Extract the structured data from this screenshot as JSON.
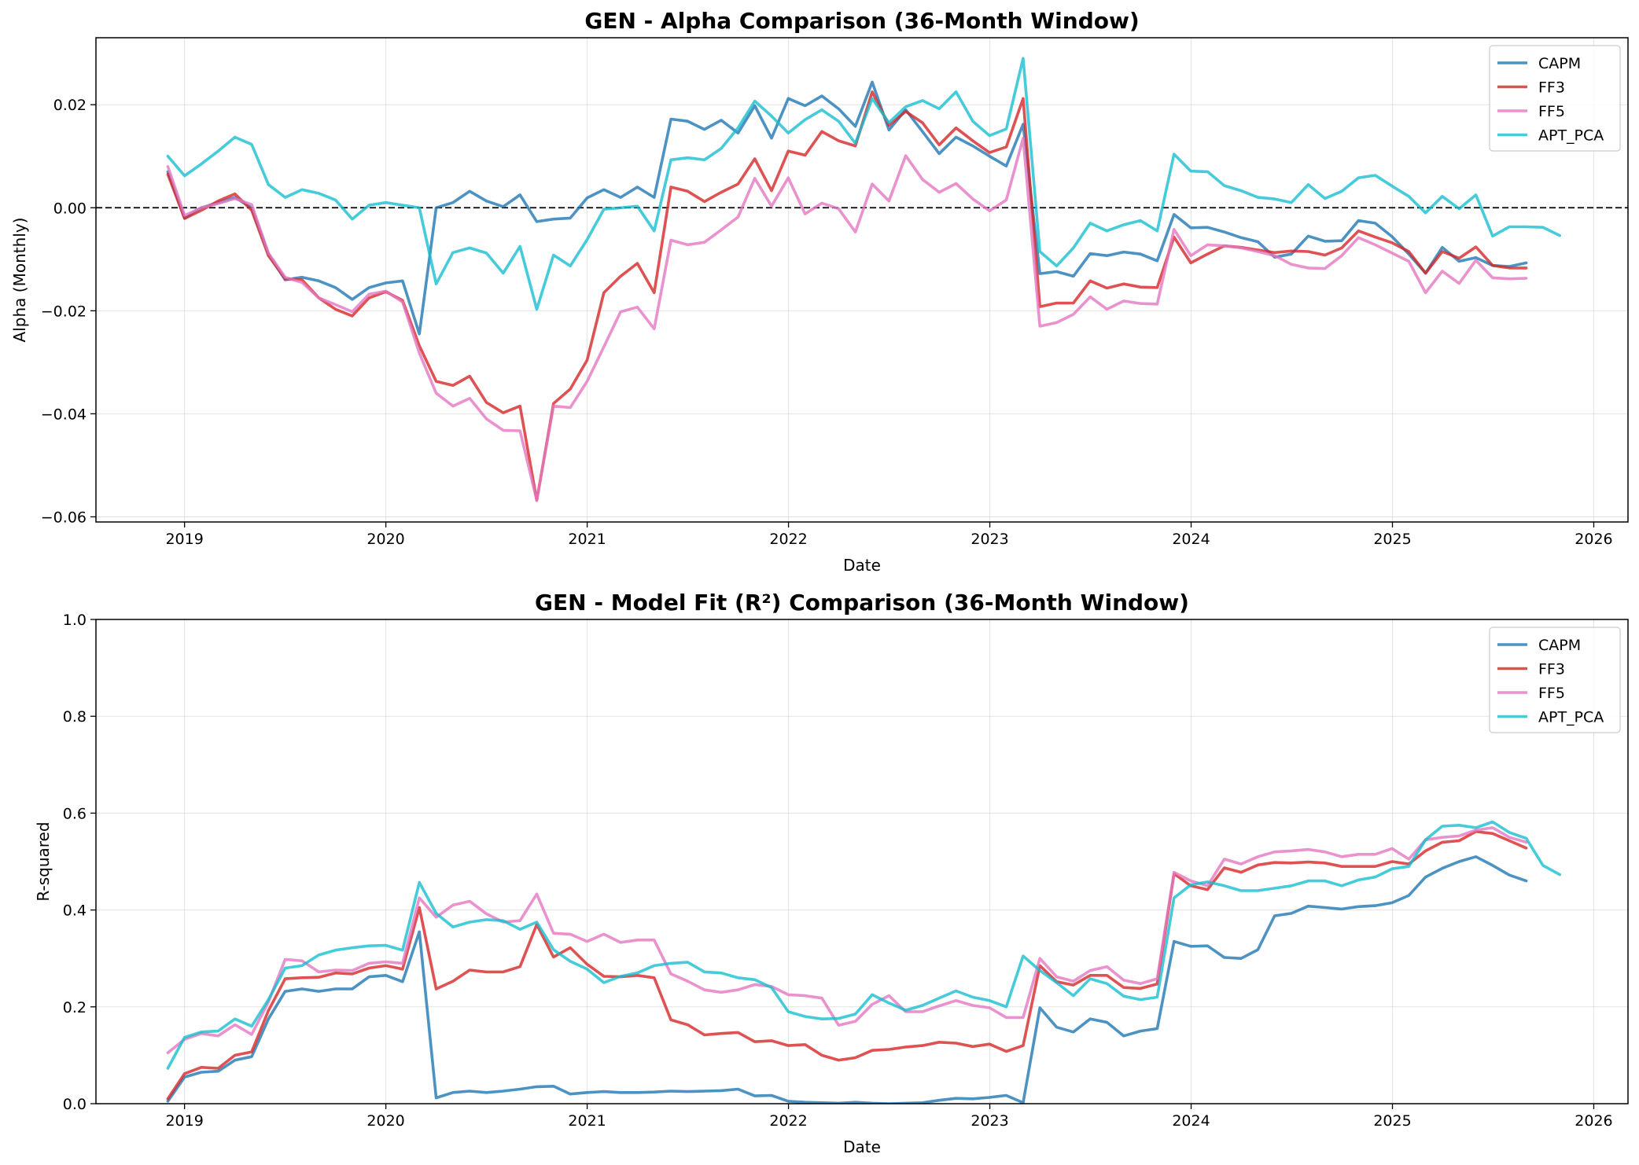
{
  "chart_data": [
    {
      "type": "line",
      "title": "GEN - Alpha Comparison (36-Month Window)",
      "xlabel": "Date",
      "ylabel": "Alpha (Monthly)",
      "xlim": [
        2018.56,
        2026.17
      ],
      "ylim": [
        -0.061,
        0.033
      ],
      "xticks": [
        2019,
        2020,
        2021,
        2022,
        2023,
        2024,
        2025,
        2026
      ],
      "xtick_labels": [
        "2019",
        "2020",
        "2021",
        "2022",
        "2023",
        "2024",
        "2025",
        "2026"
      ],
      "yticks": [
        0.02,
        0.0,
        -0.02,
        -0.04,
        -0.06
      ],
      "ytick_labels": [
        "0.02",
        "0.00",
        "−0.02",
        "−0.04",
        "−0.06"
      ],
      "reference_line": {
        "y": 0.0,
        "style": "dashed",
        "color": "#000000"
      },
      "grid": true,
      "legend": "top-right",
      "x_start": 2018.917,
      "x_step": 0.0833,
      "series": [
        {
          "name": "CAPM",
          "color": "#1f77b4",
          "values": [
            0.007,
            -0.002,
            0.0,
            0.001,
            0.002,
            0.0,
            -0.009,
            -0.014,
            -0.0135,
            -0.0142,
            -0.0155,
            -0.0178,
            -0.0155,
            -0.0146,
            -0.0142,
            -0.0245,
            0.0,
            0.001,
            0.0032,
            0.0013,
            0.0002,
            0.0025,
            -0.0027,
            -0.0022,
            -0.002,
            0.0019,
            0.0035,
            0.002,
            0.004,
            0.002,
            0.0172,
            0.0168,
            0.0152,
            0.017,
            0.0145,
            0.0198,
            0.0135,
            0.0212,
            0.0198,
            0.0217,
            0.0192,
            0.0158,
            0.0244,
            0.0151,
            0.019,
            0.0148,
            0.0105,
            0.0137,
            0.012,
            0.01,
            0.0081,
            0.0162,
            -0.0128,
            -0.0124,
            -0.0133,
            -0.0089,
            -0.0093,
            -0.0086,
            -0.009,
            -0.0103,
            -0.0013,
            -0.0039,
            -0.0038,
            -0.0047,
            -0.0058,
            -0.0066,
            -0.0096,
            -0.009,
            -0.0055,
            -0.0065,
            -0.0064,
            -0.0025,
            -0.003,
            -0.0056,
            -0.009,
            -0.0127,
            -0.0077,
            -0.0104,
            -0.0097,
            -0.0112,
            -0.0114,
            -0.0107
          ]
        },
        {
          "name": "FF3",
          "color": "#d62728",
          "values": [
            0.0065,
            -0.0021,
            -0.0005,
            0.0013,
            0.0027,
            -0.0005,
            -0.0093,
            -0.0138,
            -0.014,
            -0.0175,
            -0.0197,
            -0.021,
            -0.0175,
            -0.0163,
            -0.018,
            -0.0268,
            -0.0337,
            -0.0345,
            -0.0327,
            -0.0378,
            -0.0398,
            -0.0385,
            -0.0568,
            -0.038,
            -0.0352,
            -0.0296,
            -0.0165,
            -0.0133,
            -0.0108,
            -0.0165,
            0.004,
            0.0032,
            0.0012,
            0.003,
            0.0046,
            0.0095,
            0.0033,
            0.011,
            0.0102,
            0.0148,
            0.013,
            0.012,
            0.0225,
            0.016,
            0.0187,
            0.0165,
            0.0122,
            0.0155,
            0.013,
            0.0107,
            0.0118,
            0.0212,
            -0.0192,
            -0.0185,
            -0.0185,
            -0.0142,
            -0.0156,
            -0.0148,
            -0.0154,
            -0.0155,
            -0.0057,
            -0.0107,
            -0.009,
            -0.0074,
            -0.0077,
            -0.0082,
            -0.0087,
            -0.0084,
            -0.0085,
            -0.0092,
            -0.0078,
            -0.0045,
            -0.0057,
            -0.0068,
            -0.0085,
            -0.0127,
            -0.0085,
            -0.0098,
            -0.0076,
            -0.0112,
            -0.0117,
            -0.0117
          ]
        },
        {
          "name": "FF5",
          "color": "#e377c2",
          "values": [
            0.008,
            -0.0015,
            0.0,
            0.0008,
            0.0018,
            0.0006,
            -0.0088,
            -0.0135,
            -0.0145,
            -0.0175,
            -0.0188,
            -0.0202,
            -0.0168,
            -0.0162,
            -0.0183,
            -0.0282,
            -0.036,
            -0.0385,
            -0.037,
            -0.041,
            -0.0432,
            -0.0433,
            -0.0568,
            -0.0385,
            -0.0388,
            -0.0337,
            -0.027,
            -0.0202,
            -0.0193,
            -0.0235,
            -0.0063,
            -0.0072,
            -0.0067,
            -0.0043,
            -0.0018,
            0.0057,
            0.0003,
            0.0058,
            -0.0012,
            0.0009,
            -0.0002,
            -0.0047,
            0.0046,
            0.0013,
            0.0101,
            0.0055,
            0.003,
            0.0047,
            0.0017,
            -0.0006,
            0.0015,
            0.0135,
            -0.023,
            -0.0223,
            -0.0207,
            -0.0173,
            -0.0197,
            -0.0181,
            -0.0186,
            -0.0187,
            -0.0042,
            -0.0093,
            -0.0072,
            -0.0074,
            -0.0078,
            -0.0085,
            -0.0093,
            -0.011,
            -0.0117,
            -0.0118,
            -0.0093,
            -0.0058,
            -0.0072,
            -0.0088,
            -0.0104,
            -0.0165,
            -0.0123,
            -0.0147,
            -0.0102,
            -0.0136,
            -0.0138,
            -0.0137
          ]
        },
        {
          "name": "APT_PCA",
          "color": "#17becf",
          "values": [
            0.01,
            0.0062,
            0.0085,
            0.011,
            0.0137,
            0.0123,
            0.0045,
            0.002,
            0.0035,
            0.0028,
            0.0015,
            -0.0022,
            0.0005,
            0.001,
            0.0005,
            0.0,
            -0.0148,
            -0.0087,
            -0.0078,
            -0.0088,
            -0.0127,
            -0.0075,
            -0.0197,
            -0.0092,
            -0.0113,
            -0.0062,
            -0.0003,
            0.0,
            0.0003,
            -0.0045,
            0.0093,
            0.0097,
            0.0093,
            0.0115,
            0.0155,
            0.0207,
            0.0178,
            0.0145,
            0.0171,
            0.019,
            0.0168,
            0.0125,
            0.0212,
            0.0165,
            0.0196,
            0.0208,
            0.0192,
            0.0225,
            0.0168,
            0.014,
            0.0153,
            0.029,
            -0.0085,
            -0.0113,
            -0.0078,
            -0.003,
            -0.0045,
            -0.0033,
            -0.0025,
            -0.0045,
            0.0104,
            0.0071,
            0.007,
            0.0043,
            0.0033,
            0.002,
            0.0017,
            0.001,
            0.0045,
            0.0018,
            0.0032,
            0.0058,
            0.0063,
            0.0042,
            0.0022,
            -0.001,
            0.0022,
            -0.0002,
            0.0025,
            -0.0055,
            -0.0037,
            -0.0037,
            -0.0038,
            -0.0054
          ]
        }
      ]
    },
    {
      "type": "line",
      "title": "GEN - Model Fit (R²) Comparison (36-Month Window)",
      "xlabel": "Date",
      "ylabel": "R-squared",
      "xlim": [
        2018.56,
        2026.17
      ],
      "ylim": [
        0.0,
        1.0
      ],
      "xticks": [
        2019,
        2020,
        2021,
        2022,
        2023,
        2024,
        2025,
        2026
      ],
      "xtick_labels": [
        "2019",
        "2020",
        "2021",
        "2022",
        "2023",
        "2024",
        "2025",
        "2026"
      ],
      "yticks": [
        1.0,
        0.8,
        0.6,
        0.4,
        0.2,
        0.0
      ],
      "ytick_labels": [
        "1.0",
        "0.8",
        "0.6",
        "0.4",
        "0.2",
        "0.0"
      ],
      "grid": true,
      "legend": "top-right",
      "x_start": 2018.917,
      "x_step": 0.0833,
      "series": [
        {
          "name": "CAPM",
          "color": "#1f77b4",
          "values": [
            0.005,
            0.055,
            0.065,
            0.067,
            0.09,
            0.097,
            0.175,
            0.232,
            0.237,
            0.232,
            0.237,
            0.237,
            0.262,
            0.265,
            0.252,
            0.355,
            0.012,
            0.023,
            0.026,
            0.023,
            0.026,
            0.03,
            0.035,
            0.036,
            0.02,
            0.023,
            0.025,
            0.023,
            0.023,
            0.024,
            0.026,
            0.025,
            0.026,
            0.027,
            0.03,
            0.016,
            0.017,
            0.005,
            0.003,
            0.002,
            0.001,
            0.003,
            0.001,
            0.0,
            0.001,
            0.002,
            0.007,
            0.011,
            0.01,
            0.013,
            0.017,
            0.002,
            0.198,
            0.158,
            0.148,
            0.175,
            0.168,
            0.14,
            0.15,
            0.155,
            0.335,
            0.325,
            0.326,
            0.302,
            0.3,
            0.318,
            0.388,
            0.393,
            0.408,
            0.405,
            0.402,
            0.407,
            0.409,
            0.415,
            0.43,
            0.468,
            0.486,
            0.5,
            0.51,
            0.492,
            0.472,
            0.46
          ]
        },
        {
          "name": "FF3",
          "color": "#d62728",
          "values": [
            0.01,
            0.062,
            0.075,
            0.073,
            0.1,
            0.107,
            0.192,
            0.258,
            0.26,
            0.261,
            0.27,
            0.268,
            0.28,
            0.285,
            0.278,
            0.405,
            0.237,
            0.253,
            0.276,
            0.272,
            0.272,
            0.283,
            0.37,
            0.303,
            0.322,
            0.288,
            0.263,
            0.262,
            0.265,
            0.26,
            0.173,
            0.163,
            0.142,
            0.145,
            0.147,
            0.128,
            0.13,
            0.12,
            0.122,
            0.1,
            0.09,
            0.095,
            0.11,
            0.112,
            0.117,
            0.12,
            0.127,
            0.125,
            0.118,
            0.123,
            0.108,
            0.12,
            0.285,
            0.252,
            0.245,
            0.265,
            0.265,
            0.24,
            0.238,
            0.247,
            0.475,
            0.45,
            0.442,
            0.487,
            0.478,
            0.493,
            0.498,
            0.497,
            0.499,
            0.497,
            0.49,
            0.49,
            0.49,
            0.5,
            0.495,
            0.522,
            0.54,
            0.543,
            0.562,
            0.558,
            0.543,
            0.528
          ]
        },
        {
          "name": "FF5",
          "color": "#e377c2",
          "values": [
            0.105,
            0.133,
            0.145,
            0.14,
            0.163,
            0.143,
            0.21,
            0.298,
            0.295,
            0.272,
            0.276,
            0.275,
            0.29,
            0.293,
            0.29,
            0.425,
            0.385,
            0.41,
            0.418,
            0.392,
            0.375,
            0.378,
            0.433,
            0.352,
            0.35,
            0.335,
            0.35,
            0.333,
            0.338,
            0.338,
            0.268,
            0.253,
            0.235,
            0.23,
            0.235,
            0.246,
            0.242,
            0.225,
            0.223,
            0.218,
            0.162,
            0.17,
            0.205,
            0.223,
            0.19,
            0.19,
            0.202,
            0.213,
            0.203,
            0.198,
            0.178,
            0.178,
            0.3,
            0.262,
            0.253,
            0.275,
            0.283,
            0.255,
            0.248,
            0.258,
            0.478,
            0.46,
            0.45,
            0.505,
            0.495,
            0.51,
            0.52,
            0.522,
            0.525,
            0.52,
            0.51,
            0.515,
            0.515,
            0.527,
            0.505,
            0.545,
            0.55,
            0.553,
            0.565,
            0.57,
            0.55,
            0.54
          ]
        },
        {
          "name": "APT_PCA",
          "color": "#17becf",
          "values": [
            0.073,
            0.137,
            0.148,
            0.15,
            0.175,
            0.16,
            0.215,
            0.28,
            0.285,
            0.307,
            0.317,
            0.322,
            0.326,
            0.327,
            0.317,
            0.457,
            0.393,
            0.365,
            0.375,
            0.38,
            0.378,
            0.36,
            0.375,
            0.318,
            0.294,
            0.278,
            0.25,
            0.263,
            0.27,
            0.285,
            0.29,
            0.292,
            0.272,
            0.27,
            0.26,
            0.256,
            0.24,
            0.19,
            0.18,
            0.175,
            0.176,
            0.185,
            0.225,
            0.208,
            0.193,
            0.203,
            0.218,
            0.233,
            0.22,
            0.213,
            0.2,
            0.305,
            0.275,
            0.25,
            0.223,
            0.258,
            0.248,
            0.222,
            0.215,
            0.22,
            0.425,
            0.452,
            0.458,
            0.45,
            0.44,
            0.44,
            0.445,
            0.45,
            0.46,
            0.46,
            0.45,
            0.462,
            0.468,
            0.485,
            0.49,
            0.545,
            0.573,
            0.575,
            0.57,
            0.582,
            0.56,
            0.548,
            0.492,
            0.473
          ]
        }
      ]
    }
  ]
}
